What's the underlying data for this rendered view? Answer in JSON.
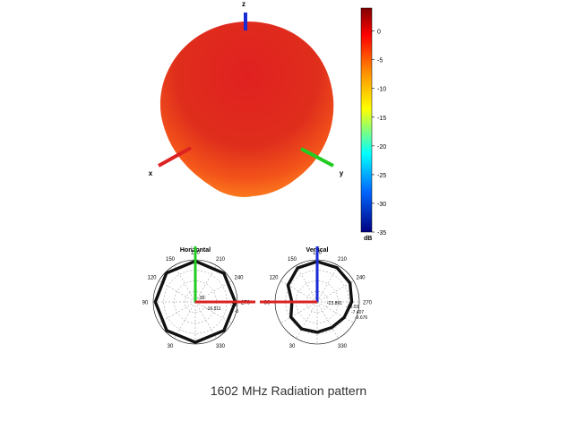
{
  "caption": "1602 MHz Radiation pattern",
  "chart_data": [
    {
      "type": "surface3d",
      "axes": [
        "x",
        "y",
        "z"
      ],
      "colormap": "jet",
      "colorbar": {
        "unit": "dB",
        "ticks": [
          0,
          -5,
          -10,
          -15,
          -20,
          -25,
          -30,
          -35
        ],
        "range": [
          -35,
          4
        ]
      },
      "axis_colors": {
        "x": "#dd2222",
        "y": "#22cc22",
        "z": "#1a2bd6"
      }
    },
    {
      "type": "polar",
      "title": "Horizontal",
      "angle_labels": [
        "0",
        "30",
        "60",
        "90",
        "120",
        "150",
        "180",
        "210",
        "240",
        "270",
        "300",
        "330"
      ],
      "radial_labels": [
        "-5",
        "-10",
        "-15",
        "-16.511",
        "-20",
        "-25",
        "-35"
      ],
      "series": [
        {
          "theta_deg": [
            0,
            45,
            90,
            135,
            180,
            225,
            270,
            315,
            360
          ],
          "r": [
            0.97,
            0.96,
            0.95,
            0.96,
            0.96,
            0.96,
            0.95,
            0.97,
            0.97
          ]
        }
      ]
    },
    {
      "type": "polar",
      "title": "Vertical",
      "angle_labels": [
        "0",
        "30",
        "60",
        "90",
        "120",
        "150",
        "180",
        "210",
        "240",
        "270",
        "300",
        "330"
      ],
      "radial_labels": [
        "-23.891",
        "-10.03",
        "-7.407",
        "-9.676"
      ],
      "series": [
        {
          "theta_deg": [
            0,
            30,
            60,
            90,
            120,
            150,
            180,
            210,
            240,
            270,
            300,
            330,
            360
          ],
          "r": [
            0.96,
            0.94,
            0.9,
            0.82,
            0.74,
            0.7,
            0.72,
            0.74,
            0.72,
            0.6,
            0.8,
            0.93,
            0.96
          ]
        }
      ]
    }
  ]
}
